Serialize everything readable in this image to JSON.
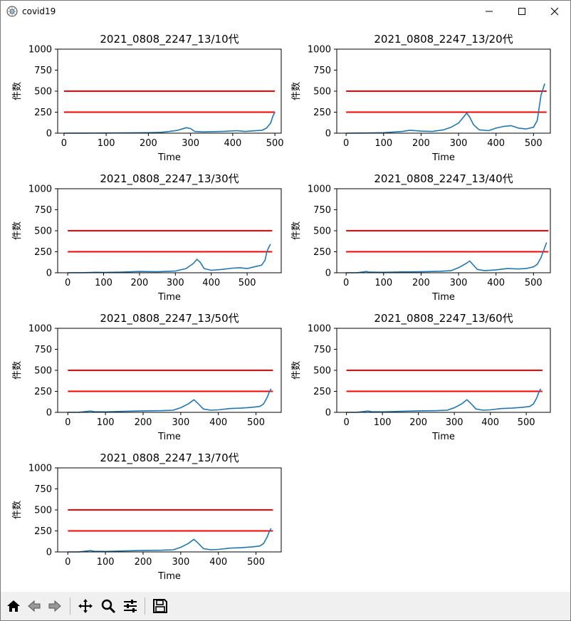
{
  "window": {
    "title": "covid19",
    "icons": [
      "app-icon",
      "minimize-icon",
      "maximize-icon",
      "close-icon"
    ]
  },
  "colors": {
    "series": "#1f77b4",
    "threshold": "#ff0000",
    "axis": "#000000",
    "toolbar_bg": "#f0f0f0"
  },
  "toolbar": {
    "coordinates": "",
    "buttons": [
      {
        "name": "home",
        "icon": "home-icon"
      },
      {
        "name": "back",
        "icon": "back-arrow-icon"
      },
      {
        "name": "forward",
        "icon": "forward-arrow-icon"
      },
      {
        "name": "pan",
        "icon": "move-icon"
      },
      {
        "name": "zoom",
        "icon": "magnifier-icon"
      },
      {
        "name": "configure-subplots",
        "icon": "sliders-icon"
      },
      {
        "name": "save",
        "icon": "floppy-disk-icon"
      }
    ]
  },
  "chart_data": [
    {
      "type": "line",
      "title": "2021_0808_2247_13/10代",
      "xlabel": "Time",
      "ylabel": "件数",
      "xlim": [
        -15,
        515
      ],
      "ylim": [
        0,
        1000
      ],
      "xticks": [
        0,
        100,
        200,
        300,
        400,
        500
      ],
      "yticks": [
        0,
        250,
        500,
        750,
        1000
      ],
      "series": [
        {
          "x": [
            0,
            50,
            100,
            150,
            200,
            230,
            250,
            270,
            290,
            300,
            310,
            330,
            350,
            380,
            410,
            420,
            430,
            450,
            470,
            480,
            490,
            495,
            500
          ],
          "values": [
            0,
            1,
            2,
            4,
            6,
            10,
            20,
            35,
            65,
            55,
            20,
            15,
            18,
            22,
            30,
            25,
            20,
            28,
            35,
            60,
            120,
            200,
            250
          ]
        }
      ],
      "hlines": [
        250,
        500
      ],
      "hline_range": [
        0,
        500
      ]
    },
    {
      "type": "line",
      "title": "2021_0808_2247_13/20代",
      "xlabel": "Time",
      "ylabel": "件数",
      "xlim": [
        -25,
        545
      ],
      "ylim": [
        0,
        1000
      ],
      "xticks": [
        0,
        100,
        200,
        300,
        400,
        500
      ],
      "yticks": [
        0,
        250,
        500,
        750,
        1000
      ],
      "series": [
        {
          "x": [
            0,
            50,
            100,
            150,
            170,
            200,
            230,
            260,
            280,
            300,
            315,
            322,
            330,
            340,
            355,
            380,
            400,
            420,
            440,
            460,
            480,
            500,
            510,
            515,
            520,
            525,
            530
          ],
          "values": [
            0,
            2,
            6,
            20,
            35,
            25,
            20,
            40,
            70,
            120,
            200,
            240,
            190,
            100,
            40,
            30,
            60,
            80,
            90,
            60,
            50,
            70,
            150,
            300,
            450,
            520,
            590
          ]
        }
      ],
      "hlines": [
        250,
        500
      ],
      "hline_range": [
        0,
        535
      ]
    },
    {
      "type": "line",
      "title": "2021_0808_2247_13/30代",
      "xlabel": "Time",
      "ylabel": "件数",
      "xlim": [
        -28,
        595
      ],
      "ylim": [
        0,
        1000
      ],
      "xticks": [
        0,
        100,
        200,
        300,
        400,
        500
      ],
      "yticks": [
        0,
        250,
        500,
        750,
        1000
      ],
      "series": [
        {
          "x": [
            0,
            50,
            80,
            100,
            150,
            200,
            250,
            300,
            330,
            350,
            360,
            370,
            380,
            400,
            430,
            460,
            480,
            500,
            520,
            540,
            550,
            555,
            560,
            565
          ],
          "values": [
            0,
            2,
            6,
            4,
            8,
            15,
            12,
            20,
            50,
            110,
            160,
            120,
            50,
            30,
            40,
            55,
            60,
            50,
            70,
            90,
            150,
            250,
            300,
            340
          ]
        }
      ],
      "hlines": [
        250,
        500
      ],
      "hline_range": [
        0,
        570
      ]
    },
    {
      "type": "line",
      "title": "2021_0808_2247_13/40代",
      "xlabel": "Time",
      "ylabel": "件数",
      "xlim": [
        -25,
        545
      ],
      "ylim": [
        0,
        1000
      ],
      "xticks": [
        0,
        100,
        200,
        300,
        400,
        500
      ],
      "yticks": [
        0,
        250,
        500,
        750,
        1000
      ],
      "series": [
        {
          "x": [
            0,
            30,
            55,
            60,
            100,
            150,
            200,
            250,
            280,
            300,
            320,
            330,
            340,
            350,
            370,
            400,
            430,
            460,
            480,
            500,
            510,
            520,
            530,
            535
          ],
          "values": [
            0,
            1,
            15,
            8,
            6,
            10,
            12,
            18,
            25,
            60,
            110,
            140,
            90,
            40,
            25,
            35,
            50,
            45,
            50,
            70,
            100,
            180,
            300,
            360
          ]
        }
      ],
      "hlines": [
        250,
        500
      ],
      "hline_range": [
        0,
        540
      ]
    },
    {
      "type": "line",
      "title": "2021_0808_2247_13/50代",
      "xlabel": "Time",
      "ylabel": "件数",
      "xlim": [
        -27,
        567
      ],
      "ylim": [
        0,
        1000
      ],
      "xticks": [
        0,
        100,
        200,
        300,
        400,
        500
      ],
      "yticks": [
        0,
        250,
        500,
        750,
        1000
      ],
      "series": [
        {
          "x": [
            0,
            30,
            60,
            70,
            100,
            150,
            200,
            250,
            280,
            300,
            320,
            335,
            345,
            360,
            380,
            400,
            430,
            460,
            490,
            510,
            520,
            530,
            535,
            540
          ],
          "values": [
            0,
            1,
            15,
            8,
            6,
            12,
            18,
            20,
            25,
            55,
            100,
            150,
            110,
            40,
            25,
            30,
            45,
            50,
            60,
            70,
            100,
            180,
            240,
            280
          ]
        }
      ],
      "hlines": [
        250,
        500
      ],
      "hline_range": [
        0,
        545
      ]
    },
    {
      "type": "line",
      "title": "2021_0808_2247_13/60代",
      "xlabel": "Time",
      "ylabel": "件数",
      "xlim": [
        -27,
        567
      ],
      "ylim": [
        0,
        1000
      ],
      "xticks": [
        0,
        100,
        200,
        300,
        400,
        500
      ],
      "yticks": [
        0,
        250,
        500,
        750,
        1000
      ],
      "series": [
        {
          "x": [
            0,
            30,
            60,
            70,
            100,
            150,
            200,
            250,
            280,
            300,
            320,
            335,
            345,
            360,
            380,
            400,
            430,
            460,
            490,
            510,
            520,
            530,
            535,
            540
          ],
          "values": [
            0,
            1,
            15,
            8,
            6,
            12,
            18,
            20,
            25,
            55,
            100,
            150,
            110,
            40,
            25,
            30,
            45,
            50,
            60,
            70,
            100,
            180,
            240,
            280
          ]
        }
      ],
      "hlines": [
        250,
        500
      ],
      "hline_range": [
        0,
        545
      ]
    },
    {
      "type": "line",
      "title": "2021_0808_2247_13/70代",
      "xlabel": "Time",
      "ylabel": "件数",
      "xlim": [
        -27,
        567
      ],
      "ylim": [
        0,
        1000
      ],
      "xticks": [
        0,
        100,
        200,
        300,
        400,
        500
      ],
      "yticks": [
        0,
        250,
        500,
        750,
        1000
      ],
      "series": [
        {
          "x": [
            0,
            30,
            60,
            70,
            100,
            150,
            200,
            250,
            280,
            300,
            320,
            335,
            345,
            360,
            380,
            400,
            430,
            460,
            490,
            510,
            520,
            530,
            535,
            540
          ],
          "values": [
            0,
            1,
            15,
            8,
            6,
            12,
            18,
            20,
            25,
            55,
            100,
            150,
            110,
            40,
            25,
            30,
            45,
            50,
            60,
            70,
            100,
            180,
            240,
            280
          ]
        }
      ],
      "hlines": [
        250,
        500
      ],
      "hline_range": [
        0,
        545
      ]
    }
  ]
}
